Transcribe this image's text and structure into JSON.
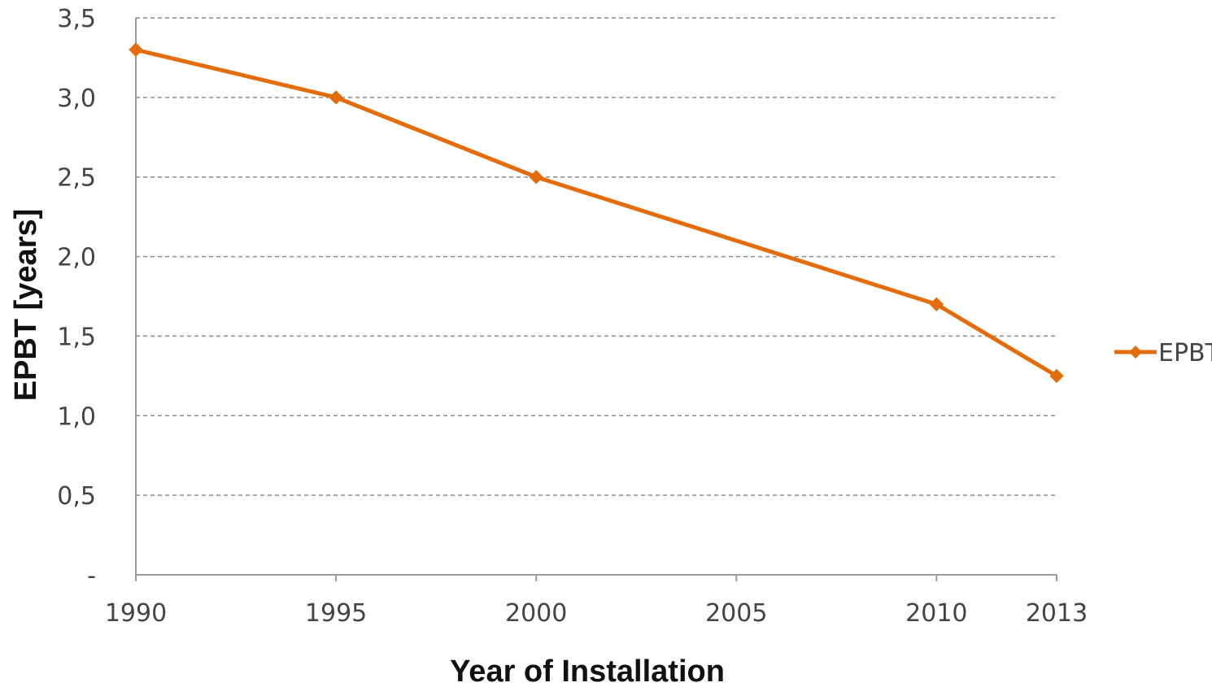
{
  "chart_data": {
    "type": "line",
    "title": "",
    "xlabel": "Year of Installation",
    "ylabel": "EPBT [years]",
    "x": [
      "1990",
      "1995",
      "2000",
      "2005",
      "2010",
      "2013"
    ],
    "x_values": [
      1990,
      1995,
      2000,
      2010,
      2013
    ],
    "ylim": [
      0,
      3.5
    ],
    "y_ticks": [
      "-",
      "0,5",
      "1,0",
      "1,5",
      "2,0",
      "2,5",
      "3,0",
      "3,5"
    ],
    "grid": true,
    "legend_position": "right",
    "series": [
      {
        "name": "EPBT",
        "color": "#E46C0A",
        "marker": "diamond",
        "points": [
          {
            "x": 1990,
            "y": 3.3
          },
          {
            "x": 1995,
            "y": 3.0
          },
          {
            "x": 2000,
            "y": 2.5
          },
          {
            "x": 2010,
            "y": 1.7
          },
          {
            "x": 2013,
            "y": 1.25
          }
        ]
      }
    ]
  }
}
